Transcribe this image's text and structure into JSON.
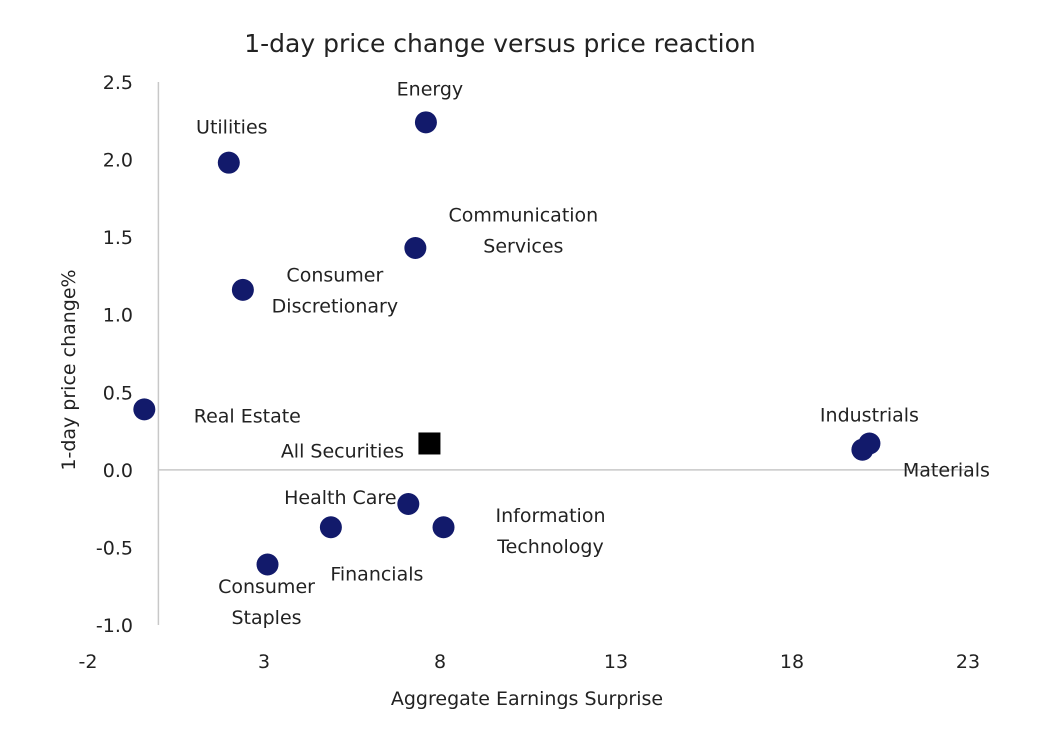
{
  "chart_data": {
    "type": "scatter",
    "title": "1-day price change versus price reaction",
    "xlabel": "Aggregate Earnings Surprise",
    "ylabel": "1-day price change%",
    "xlim": [
      -2,
      23
    ],
    "ylim": [
      -1.0,
      2.5
    ],
    "x_ticks": [
      -2,
      3,
      8,
      13,
      18,
      23
    ],
    "x_tick_labels": [
      "-2",
      "3",
      "8",
      "13",
      "18",
      "23"
    ],
    "y_ticks": [
      2.5,
      2.0,
      1.5,
      1.0,
      0.5,
      0.0,
      -0.5,
      -1.0
    ],
    "y_tick_labels": [
      "2.5",
      "2.0",
      "1.5",
      "1.0",
      "0.5",
      "0.0",
      "-0.5",
      "-1.0"
    ],
    "grid": false,
    "legend": "none",
    "colors": {
      "sector_marker": "#121a6b",
      "aggregate_marker": "#000000",
      "axis_line": "#c8c8c8",
      "text": "#222222"
    },
    "points": [
      {
        "label": "Energy",
        "label_lines": [
          "Energy"
        ],
        "x": 7.6,
        "y": 2.24,
        "marker": "circle"
      },
      {
        "label": "Utilities",
        "label_lines": [
          "Utilities"
        ],
        "x": 2.0,
        "y": 1.98,
        "marker": "circle"
      },
      {
        "label": "Communication Services",
        "label_lines": [
          "Communication",
          "Services"
        ],
        "x": 7.3,
        "y": 1.43,
        "marker": "circle"
      },
      {
        "label": "Consumer Discretionary",
        "label_lines": [
          "Consumer",
          "Discretionary"
        ],
        "x": 2.4,
        "y": 1.16,
        "marker": "circle"
      },
      {
        "label": "Real Estate",
        "label_lines": [
          "Real Estate"
        ],
        "x": -0.4,
        "y": 0.39,
        "marker": "circle"
      },
      {
        "label": "All Securities",
        "label_lines": [
          "All Securities"
        ],
        "x": 7.7,
        "y": 0.17,
        "marker": "square"
      },
      {
        "label": "Industrials",
        "label_lines": [
          "Industrials"
        ],
        "x": 20.2,
        "y": 0.17,
        "marker": "circle"
      },
      {
        "label": "Materials",
        "label_lines": [
          "Materials"
        ],
        "x": 20.0,
        "y": 0.13,
        "marker": "circle"
      },
      {
        "label": "Health Care",
        "label_lines": [
          "Health Care"
        ],
        "x": 7.1,
        "y": -0.22,
        "marker": "circle"
      },
      {
        "label": "Financials",
        "label_lines": [
          "Financials"
        ],
        "x": 4.9,
        "y": -0.37,
        "marker": "circle"
      },
      {
        "label": "Information Technology",
        "label_lines": [
          "Information",
          "Technology"
        ],
        "x": 8.1,
        "y": -0.37,
        "marker": "circle"
      },
      {
        "label": "Consumer Staples",
        "label_lines": [
          "Consumer",
          "Staples"
        ],
        "x": 3.1,
        "y": -0.61,
        "marker": "circle"
      }
    ]
  }
}
